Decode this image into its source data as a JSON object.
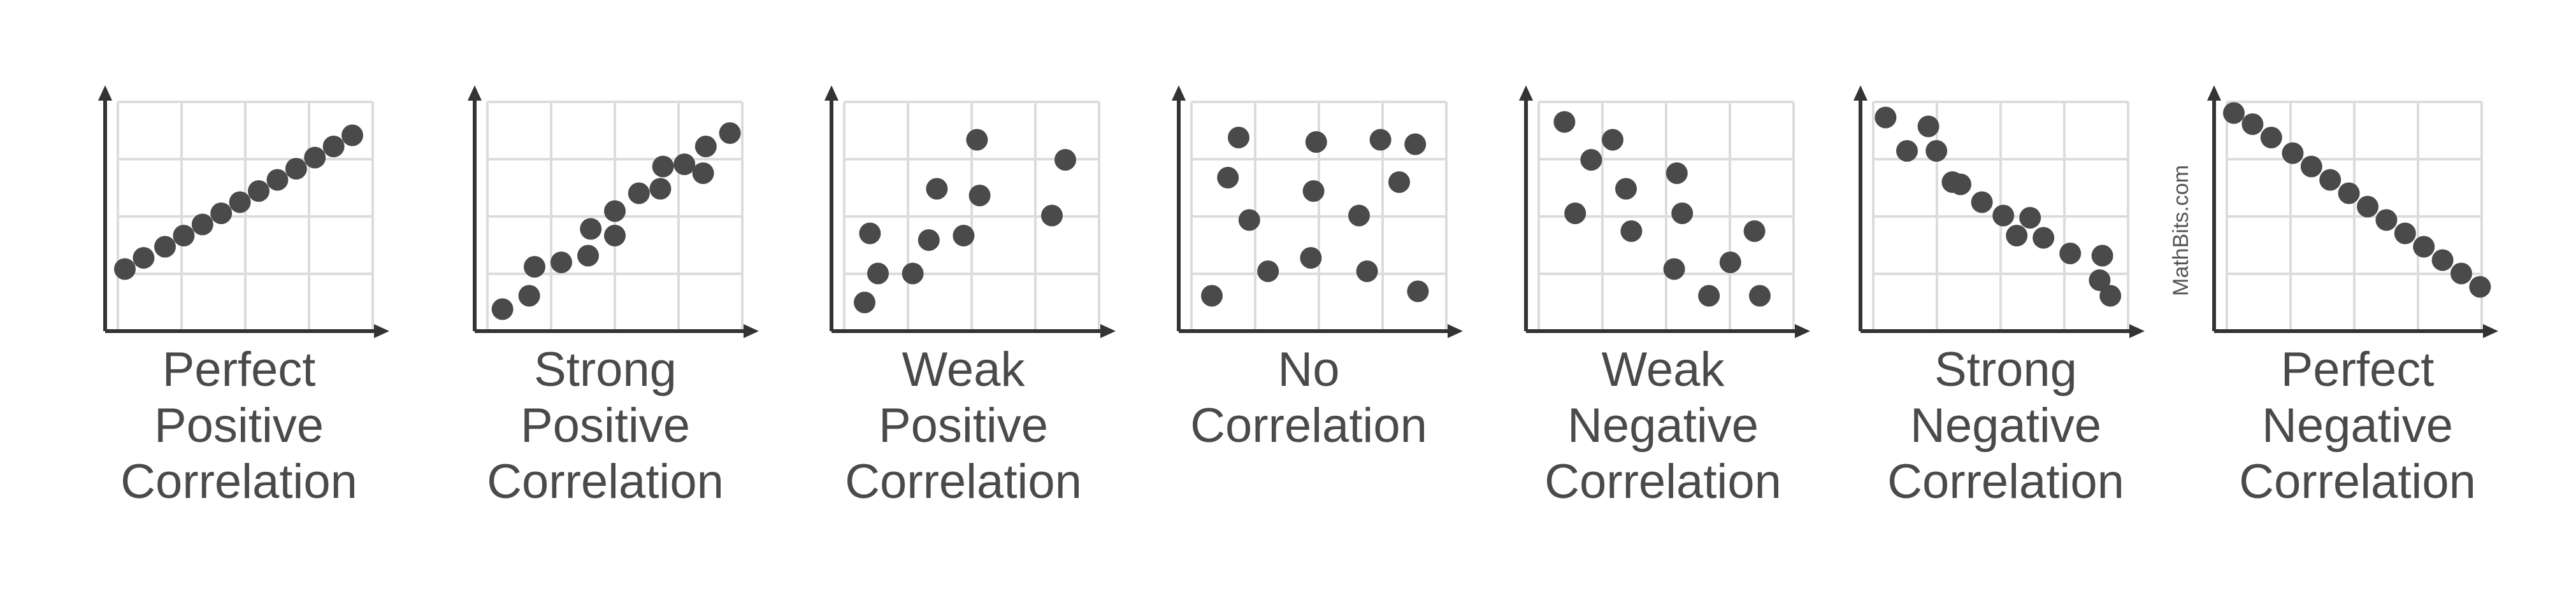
{
  "watermark": "MathBits.com",
  "colors": {
    "dot": "#4a4a4a",
    "axis": "#333333",
    "grid": "#dcdcdc",
    "text": "#4a4a4a"
  },
  "chart_data": [
    {
      "type": "scatter",
      "label_lines": [
        "Perfect",
        "Positive",
        "Correlation"
      ],
      "xlim": [
        0,
        10
      ],
      "ylim": [
        0,
        10
      ],
      "x": [
        0.5,
        1.2,
        2.0,
        2.7,
        3.4,
        4.1,
        4.8,
        5.5,
        6.2,
        6.9,
        7.6,
        8.3,
        9.0
      ],
      "y": [
        2.5,
        3.0,
        3.5,
        4.0,
        4.5,
        5.0,
        5.5,
        6.0,
        6.5,
        7.0,
        7.5,
        8.0,
        8.5
      ]
    },
    {
      "type": "scatter",
      "label_lines": [
        "Strong",
        "Positive",
        "Correlation"
      ],
      "xlim": [
        0,
        10
      ],
      "ylim": [
        0,
        10
      ],
      "x": [
        0.8,
        1.8,
        2.0,
        3.0,
        4.0,
        4.1,
        5.0,
        5.0,
        5.9,
        6.7,
        6.8,
        7.6,
        8.3,
        8.4,
        9.3
      ],
      "y": [
        0.7,
        1.3,
        2.6,
        2.8,
        3.1,
        4.3,
        4.0,
        5.1,
        5.9,
        6.1,
        7.1,
        7.2,
        6.8,
        8.0,
        8.6
      ]
    },
    {
      "type": "scatter",
      "label_lines": [
        "Weak",
        "Positive",
        "Correlation"
      ],
      "xlim": [
        0,
        10
      ],
      "ylim": [
        0,
        10
      ],
      "x": [
        1.0,
        1.2,
        1.5,
        2.8,
        3.4,
        3.7,
        4.7,
        5.2,
        5.3,
        8.0,
        8.5
      ],
      "y": [
        1.0,
        4.1,
        2.3,
        2.3,
        3.8,
        6.1,
        4.0,
        8.3,
        5.8,
        4.9,
        7.4
      ]
    },
    {
      "type": "scatter",
      "label_lines": [
        "No",
        "Correlation"
      ],
      "xlim": [
        0,
        10
      ],
      "ylim": [
        0,
        10
      ],
      "x": [
        1.0,
        1.6,
        2.0,
        2.4,
        3.1,
        4.7,
        4.8,
        4.9,
        6.5,
        6.8,
        7.3,
        8.0,
        8.6,
        8.7
      ],
      "y": [
        1.3,
        6.6,
        8.4,
        4.7,
        2.4,
        3.0,
        6.0,
        8.2,
        4.9,
        2.4,
        8.3,
        6.4,
        8.1,
        1.5
      ]
    },
    {
      "type": "scatter",
      "label_lines": [
        "Weak",
        "Negative",
        "Correlation"
      ],
      "xlim": [
        0,
        10
      ],
      "ylim": [
        0,
        10
      ],
      "x": [
        1.2,
        1.6,
        2.2,
        3.0,
        3.5,
        3.7,
        5.3,
        5.4,
        5.6,
        6.6,
        7.4,
        8.3,
        8.5
      ],
      "y": [
        9.1,
        5.0,
        7.4,
        8.3,
        6.1,
        4.2,
        2.5,
        6.8,
        5.0,
        1.3,
        2.8,
        4.2,
        1.3
      ]
    },
    {
      "type": "scatter",
      "label_lines": [
        "Strong",
        "Negative",
        "Correlation"
      ],
      "xlim": [
        0,
        10
      ],
      "ylim": [
        0,
        10
      ],
      "x": [
        0.7,
        1.5,
        2.3,
        2.6,
        3.2,
        3.5,
        4.3,
        5.1,
        5.6,
        6.1,
        6.6,
        7.6,
        8.7,
        8.8,
        9.1
      ],
      "y": [
        9.3,
        7.8,
        8.9,
        7.8,
        6.4,
        6.3,
        5.5,
        4.9,
        4.0,
        4.8,
        3.9,
        3.2,
        2.0,
        3.1,
        1.3
      ]
    },
    {
      "type": "scatter",
      "label_lines": [
        "Perfect",
        "Negative",
        "Correlation"
      ],
      "xlim": [
        0,
        10
      ],
      "ylim": [
        0,
        10
      ],
      "x": [
        0.5,
        1.2,
        1.9,
        2.7,
        3.4,
        4.1,
        4.8,
        5.5,
        6.2,
        6.9,
        7.6,
        8.3,
        9.0,
        9.7
      ],
      "y": [
        9.5,
        9.0,
        8.4,
        7.7,
        7.1,
        6.5,
        5.9,
        5.3,
        4.7,
        4.1,
        3.5,
        2.9,
        2.3,
        1.7
      ]
    }
  ]
}
